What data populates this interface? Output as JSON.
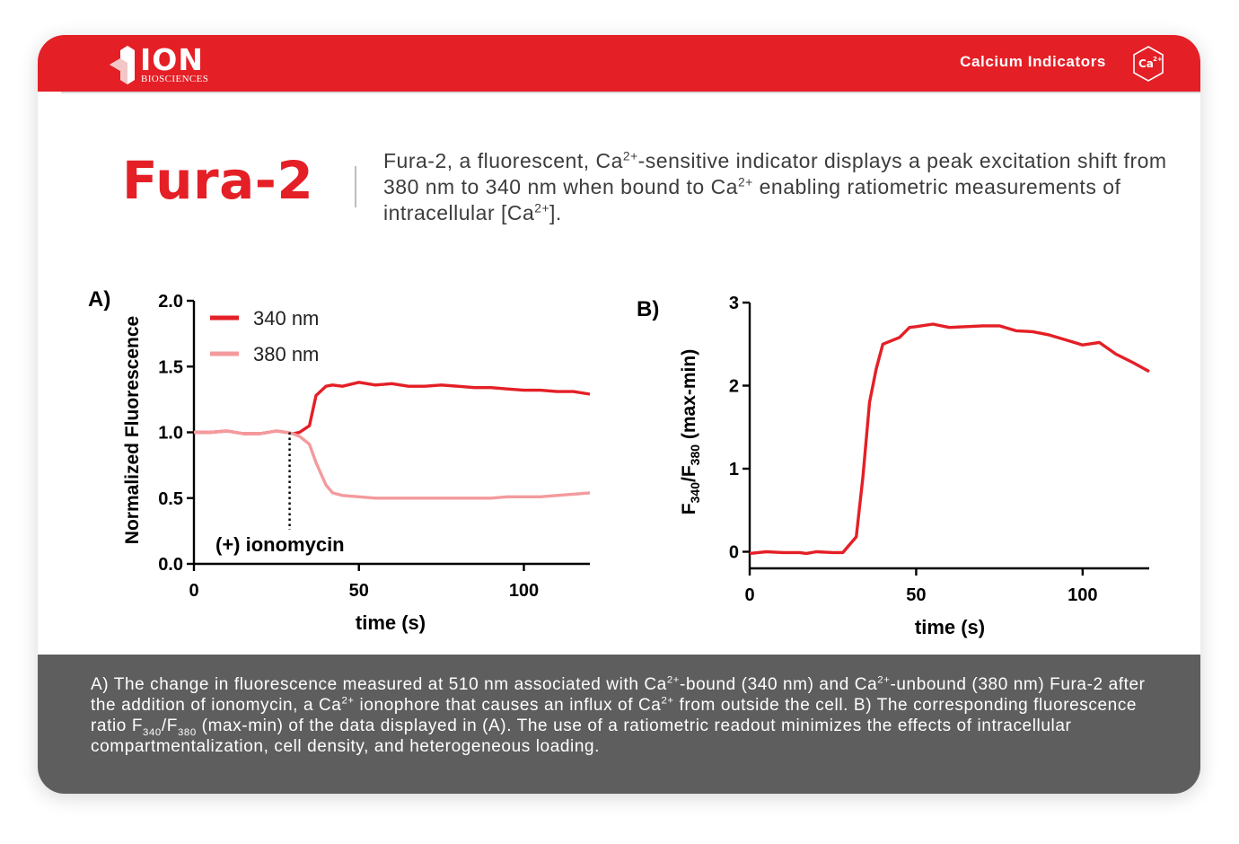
{
  "header": {
    "logo_word": "ION",
    "logo_sub": "BIOSCIENCES",
    "nav_title": "Calcium Indicators",
    "badge_text": "Ca",
    "badge_sup": "2+",
    "accent_color": "#e41f26"
  },
  "title": "Fura-2",
  "description": {
    "p1": "Fura-2, a fluorescent, Ca",
    "s1": "2+",
    "p2": "-sensitive indicator displays a peak excitation shift from 380 nm to 340 nm when bound to Ca",
    "s2": "2+",
    "p3": " enabling ratiometric measurements of intracellular [Ca",
    "s3": "2+",
    "p4": "]."
  },
  "chart_data": [
    {
      "type": "line",
      "panel_label": "A)",
      "xlabel": "time (s)",
      "ylabel": "Normalized Fluorescence",
      "xlim": [
        0,
        120
      ],
      "ylim": [
        0,
        2.0
      ],
      "xticks": [
        0,
        50,
        100
      ],
      "xtick_labels": [
        "0",
        "50",
        "100"
      ],
      "yticks": [
        0,
        0.5,
        1.0,
        1.5,
        2.0
      ],
      "ytick_labels": [
        "0.0",
        "0.5",
        "1.0",
        "1.5",
        "2.0"
      ],
      "grid": false,
      "legend_position": "top-left",
      "series": [
        {
          "name": "340 nm",
          "color": "#e41f26",
          "x": [
            0,
            5,
            10,
            15,
            20,
            25,
            28,
            30,
            32,
            35,
            37,
            40,
            42,
            45,
            50,
            55,
            60,
            65,
            70,
            75,
            80,
            85,
            90,
            95,
            100,
            105,
            110,
            115,
            120
          ],
          "y": [
            1.0,
            1.0,
            1.01,
            0.99,
            0.99,
            1.01,
            1.0,
            0.99,
            1.0,
            1.05,
            1.28,
            1.35,
            1.36,
            1.35,
            1.38,
            1.36,
            1.37,
            1.35,
            1.35,
            1.36,
            1.35,
            1.34,
            1.34,
            1.33,
            1.32,
            1.32,
            1.31,
            1.31,
            1.29
          ]
        },
        {
          "name": "380 nm",
          "color": "#f49a9d",
          "x": [
            0,
            5,
            10,
            15,
            20,
            25,
            28,
            30,
            32,
            35,
            37,
            40,
            42,
            45,
            50,
            55,
            60,
            65,
            70,
            75,
            80,
            85,
            90,
            95,
            100,
            105,
            110,
            115,
            120
          ],
          "y": [
            1.0,
            1.0,
            1.01,
            0.99,
            0.99,
            1.01,
            1.0,
            0.99,
            0.97,
            0.91,
            0.77,
            0.6,
            0.54,
            0.52,
            0.51,
            0.5,
            0.5,
            0.5,
            0.5,
            0.5,
            0.5,
            0.5,
            0.5,
            0.51,
            0.51,
            0.51,
            0.52,
            0.53,
            0.54
          ]
        }
      ],
      "annotation": {
        "text": "(+) ionomycin",
        "x": 29,
        "y_from": 0.3,
        "y_to": 1.0
      }
    },
    {
      "type": "line",
      "panel_label": "B)",
      "xlabel": "time (s)",
      "ylabel_main": "F",
      "ylabel_sub1": "340",
      "ylabel_mid": "/F",
      "ylabel_sub2": "380",
      "ylabel_tail": " (max-min)",
      "xlim": [
        0,
        120
      ],
      "ylim": [
        -0.2,
        3.0
      ],
      "xticks": [
        0,
        50,
        100
      ],
      "xtick_labels": [
        "0",
        "50",
        "100"
      ],
      "yticks": [
        0,
        1,
        2,
        3
      ],
      "ytick_labels": [
        "0",
        "1",
        "2",
        "3"
      ],
      "grid": false,
      "series": [
        {
          "color": "#e41f26",
          "x": [
            0,
            5,
            10,
            15,
            17,
            20,
            25,
            28,
            32,
            34,
            36,
            38,
            40,
            45,
            48,
            50,
            55,
            60,
            65,
            70,
            75,
            80,
            85,
            90,
            95,
            100,
            105,
            110,
            115,
            120
          ],
          "y": [
            -0.02,
            0.0,
            -0.01,
            -0.01,
            -0.02,
            0.0,
            -0.01,
            -0.01,
            0.18,
            0.9,
            1.8,
            2.2,
            2.5,
            2.58,
            2.7,
            2.71,
            2.74,
            2.7,
            2.71,
            2.72,
            2.72,
            2.66,
            2.65,
            2.61,
            2.55,
            2.49,
            2.52,
            2.38,
            2.28,
            2.17
          ]
        }
      ]
    }
  ],
  "footer": {
    "t1": "A) The change in fluorescence measured at 510 nm associated with Ca",
    "s1": "2+",
    "t2": "-bound (340 nm) and Ca",
    "s2": "2+",
    "t3": "-unbound (380 nm) Fura-2 after the addition of ionomycin, a Ca",
    "s3": "2+",
    "t4": " ionophore that causes an influx of Ca",
    "s4": "2+",
    "t5": " from outside the cell. B) The corresponding fluorescence ratio F",
    "s5": "340",
    "t6": "/F",
    "s6": "380",
    "t7": " (max-min) of the data displayed in (A). The use of a ratiometric readout minimizes the effects of intracellular compartmentalization, cell density, and heterogeneous loading."
  }
}
